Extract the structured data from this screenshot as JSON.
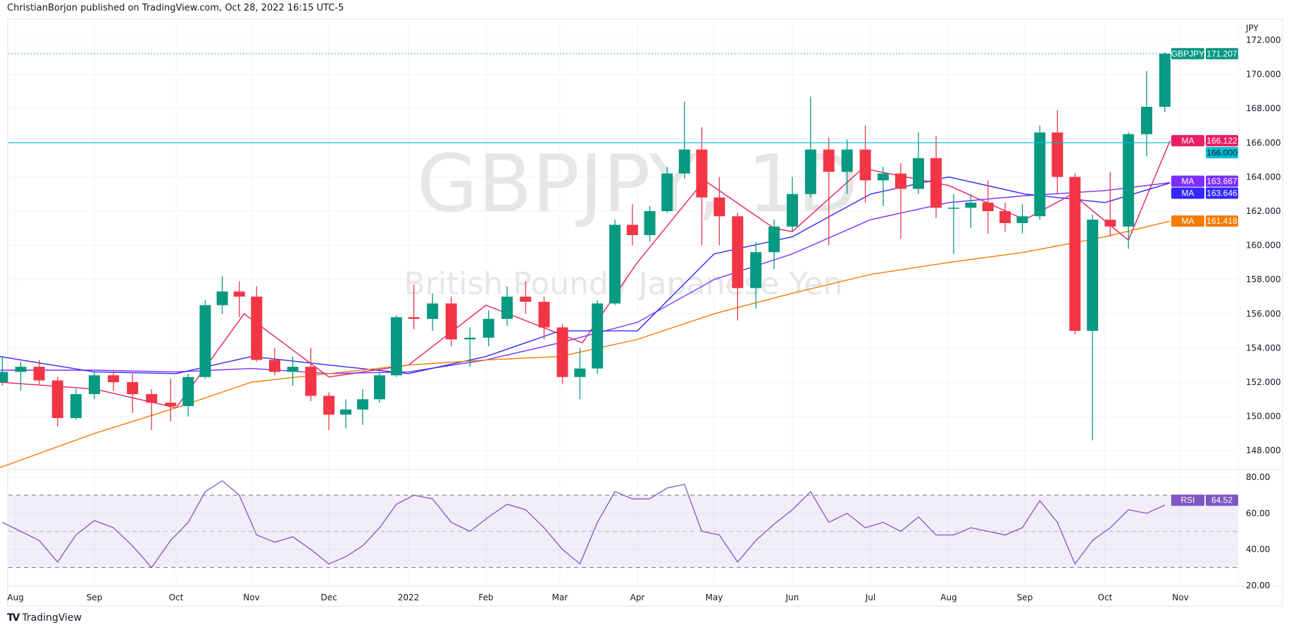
{
  "header": {
    "text": "ChristianBorjon published on TradingView.com, Oct 28, 2022 16:15 UTC-5"
  },
  "footer": {
    "logo_text": "TradingView"
  },
  "watermark": {
    "symbol": "GBPJPY, 1D",
    "description": "British Pound / Japanese Yen"
  },
  "colors": {
    "up": "#089981",
    "down": "#f23645",
    "ma20": "#e91e63",
    "ma100": "#7b2fff",
    "ma50": "#3326ff",
    "ma200": "#f57c00",
    "hline": "#00bcd4",
    "rsi": "#7e57c2"
  },
  "chart_data": [
    {
      "type": "candlestick",
      "symbol": "GBPJPY",
      "interval": "1D",
      "currency_label": "JPY",
      "ylim": [
        147,
        172.6
      ],
      "y_ticks": [
        "172.000",
        "170.000",
        "168.000",
        "166.000",
        "164.000",
        "162.000",
        "160.000",
        "158.000",
        "156.000",
        "154.000",
        "152.000",
        "150.000",
        "148.000"
      ],
      "x_ticks": [
        {
          "label": "Aug",
          "date": "2021-08-02"
        },
        {
          "label": "Sep",
          "date": "2021-09-01"
        },
        {
          "label": "Oct",
          "date": "2021-10-01"
        },
        {
          "label": "Nov",
          "date": "2021-11-01"
        },
        {
          "label": "Dec",
          "date": "2021-12-01"
        },
        {
          "label": "2022",
          "date": "2022-01-03"
        },
        {
          "label": "Feb",
          "date": "2022-02-01"
        },
        {
          "label": "Mar",
          "date": "2022-03-01"
        },
        {
          "label": "Apr",
          "date": "2022-04-01"
        },
        {
          "label": "May",
          "date": "2022-05-02"
        },
        {
          "label": "Jun",
          "date": "2022-06-01"
        },
        {
          "label": "Jul",
          "date": "2022-07-01"
        },
        {
          "label": "Aug",
          "date": "2022-08-01"
        },
        {
          "label": "Sep",
          "date": "2022-09-01"
        },
        {
          "label": "Oct",
          "date": "2022-10-03"
        },
        {
          "label": "Nov",
          "date": "2022-11-01"
        }
      ],
      "grid": true,
      "last_price": {
        "label": "GBPJPY",
        "value": "171.207"
      },
      "horizontal_line": {
        "value": 166.0,
        "label": "166.000"
      },
      "candles_columns": [
        "date",
        "open",
        "high",
        "low",
        "close"
      ],
      "candles": [
        [
          "2021-07-30",
          152.0,
          153.5,
          151.8,
          152.6
        ],
        [
          "2021-08-06",
          152.6,
          153.2,
          151.5,
          152.9
        ],
        [
          "2021-08-13",
          152.9,
          153.3,
          151.8,
          152.1
        ],
        [
          "2021-08-20",
          152.1,
          152.3,
          149.4,
          149.9
        ],
        [
          "2021-08-27",
          149.9,
          151.6,
          149.8,
          151.3
        ],
        [
          "2021-09-03",
          151.3,
          152.6,
          151.0,
          152.4
        ],
        [
          "2021-09-10",
          152.4,
          152.7,
          151.5,
          152.0
        ],
        [
          "2021-09-17",
          152.0,
          152.5,
          150.2,
          151.3
        ],
        [
          "2021-09-24",
          151.3,
          151.6,
          149.2,
          150.8
        ],
        [
          "2021-10-01",
          150.8,
          152.2,
          149.7,
          150.6
        ],
        [
          "2021-10-08",
          150.6,
          152.5,
          150.0,
          152.3
        ],
        [
          "2021-10-15",
          152.3,
          156.8,
          152.2,
          156.5
        ],
        [
          "2021-10-22",
          156.5,
          158.2,
          156.0,
          157.3
        ],
        [
          "2021-10-29",
          157.3,
          157.9,
          155.8,
          157.0
        ],
        [
          "2021-11-05",
          157.0,
          157.6,
          153.2,
          153.3
        ],
        [
          "2021-11-12",
          153.3,
          154.0,
          152.4,
          152.6
        ],
        [
          "2021-11-19",
          152.6,
          153.5,
          151.8,
          152.9
        ],
        [
          "2021-11-26",
          152.9,
          154.0,
          150.9,
          151.2
        ],
        [
          "2021-12-03",
          151.2,
          151.4,
          149.2,
          150.1
        ],
        [
          "2021-12-10",
          150.1,
          151.0,
          149.3,
          150.4
        ],
        [
          "2021-12-17",
          150.4,
          151.6,
          149.5,
          151.0
        ],
        [
          "2021-12-24",
          151.0,
          152.6,
          150.8,
          152.4
        ],
        [
          "2021-12-31",
          152.4,
          155.9,
          152.3,
          155.8
        ],
        [
          "2022-01-07",
          155.8,
          157.7,
          155.1,
          155.7
        ],
        [
          "2022-01-14",
          155.7,
          157.2,
          155.0,
          156.6
        ],
        [
          "2022-01-21",
          156.6,
          157.0,
          154.1,
          154.5
        ],
        [
          "2022-01-28",
          154.5,
          155.2,
          152.9,
          154.6
        ],
        [
          "2022-02-04",
          154.6,
          156.2,
          154.1,
          155.7
        ],
        [
          "2022-02-11",
          155.7,
          157.6,
          155.3,
          157.0
        ],
        [
          "2022-02-18",
          157.0,
          157.9,
          156.0,
          156.7
        ],
        [
          "2022-02-25",
          156.7,
          157.0,
          154.5,
          155.2
        ],
        [
          "2022-03-04",
          155.2,
          155.4,
          151.9,
          152.3
        ],
        [
          "2022-03-11",
          152.3,
          154.0,
          151.0,
          152.8
        ],
        [
          "2022-03-18",
          152.8,
          156.8,
          152.5,
          156.6
        ],
        [
          "2022-03-25",
          156.6,
          161.5,
          156.5,
          161.2
        ],
        [
          "2022-04-01",
          161.2,
          162.4,
          160.0,
          160.6
        ],
        [
          "2022-04-08",
          160.6,
          162.3,
          160.2,
          162.0
        ],
        [
          "2022-04-15",
          162.0,
          164.6,
          161.9,
          164.2
        ],
        [
          "2022-04-22",
          164.2,
          168.4,
          163.9,
          165.6
        ],
        [
          "2022-04-29",
          165.6,
          166.9,
          160.0,
          162.8
        ],
        [
          "2022-05-06",
          162.8,
          164.0,
          160.0,
          161.7
        ],
        [
          "2022-05-13",
          161.7,
          161.9,
          155.6,
          157.5
        ],
        [
          "2022-05-20",
          157.5,
          160.2,
          156.3,
          159.6
        ],
        [
          "2022-05-27",
          159.6,
          161.5,
          158.6,
          161.1
        ],
        [
          "2022-06-03",
          161.1,
          164.0,
          160.8,
          163.0
        ],
        [
          "2022-06-10",
          163.0,
          168.7,
          162.8,
          165.6
        ],
        [
          "2022-06-17",
          165.6,
          166.3,
          160.0,
          164.3
        ],
        [
          "2022-06-24",
          164.3,
          166.2,
          163.0,
          165.6
        ],
        [
          "2022-07-01",
          165.6,
          167.0,
          162.5,
          163.8
        ],
        [
          "2022-07-08",
          163.8,
          164.6,
          162.3,
          164.2
        ],
        [
          "2022-07-15",
          164.2,
          164.8,
          160.4,
          163.3
        ],
        [
          "2022-07-22",
          163.3,
          166.6,
          163.0,
          165.1
        ],
        [
          "2022-07-29",
          165.1,
          166.4,
          161.6,
          162.2
        ],
        [
          "2022-08-05",
          162.2,
          163.0,
          159.5,
          162.2
        ],
        [
          "2022-08-12",
          162.2,
          163.0,
          161.0,
          162.5
        ],
        [
          "2022-08-19",
          162.5,
          163.8,
          160.7,
          162.0
        ],
        [
          "2022-08-26",
          162.0,
          162.5,
          160.8,
          161.3
        ],
        [
          "2022-09-02",
          161.3,
          162.4,
          160.7,
          161.7
        ],
        [
          "2022-09-09",
          161.7,
          167.0,
          161.5,
          166.6
        ],
        [
          "2022-09-16",
          166.6,
          167.9,
          163.0,
          164.0
        ],
        [
          "2022-09-23",
          164.0,
          164.2,
          154.8,
          155.0
        ],
        [
          "2022-09-30",
          155.0,
          161.8,
          148.6,
          161.5
        ],
        [
          "2022-10-07",
          161.5,
          164.3,
          160.5,
          161.1
        ],
        [
          "2022-10-14",
          161.1,
          166.6,
          159.8,
          166.5
        ],
        [
          "2022-10-21",
          166.5,
          170.2,
          165.2,
          168.1
        ],
        [
          "2022-10-28",
          168.1,
          171.3,
          167.8,
          171.207
        ]
      ],
      "moving_averages": [
        {
          "name": "MA",
          "value": "166.122",
          "color_key": "ma20",
          "points": [
            [
              "2021-07-27",
              152.0
            ],
            [
              "2021-09-01",
              151.6
            ],
            [
              "2021-10-01",
              150.5
            ],
            [
              "2021-10-29",
              156.0
            ],
            [
              "2021-12-01",
              152.3
            ],
            [
              "2022-01-03",
              153.0
            ],
            [
              "2022-02-01",
              156.5
            ],
            [
              "2022-03-10",
              154.3
            ],
            [
              "2022-04-01",
              159.0
            ],
            [
              "2022-04-28",
              163.8
            ],
            [
              "2022-05-25",
              161.0
            ],
            [
              "2022-06-01",
              160.8
            ],
            [
              "2022-06-28",
              164.5
            ],
            [
              "2022-08-01",
              163.5
            ],
            [
              "2022-09-01",
              161.5
            ],
            [
              "2022-09-20",
              163.0
            ],
            [
              "2022-10-12",
              160.3
            ],
            [
              "2022-10-28",
              166.122
            ]
          ]
        },
        {
          "name": "MA",
          "value": "163.667",
          "color_key": "ma100",
          "points": [
            [
              "2021-07-27",
              152.7
            ],
            [
              "2021-09-01",
              152.7
            ],
            [
              "2021-10-01",
              152.6
            ],
            [
              "2021-11-01",
              152.8
            ],
            [
              "2021-12-01",
              152.5
            ],
            [
              "2022-01-03",
              152.6
            ],
            [
              "2022-02-01",
              153.3
            ],
            [
              "2022-03-01",
              154.3
            ],
            [
              "2022-04-01",
              155.5
            ],
            [
              "2022-05-02",
              158.0
            ],
            [
              "2022-06-01",
              159.5
            ],
            [
              "2022-07-01",
              161.5
            ],
            [
              "2022-08-01",
              162.5
            ],
            [
              "2022-09-01",
              162.9
            ],
            [
              "2022-10-03",
              163.2
            ],
            [
              "2022-10-28",
              163.667
            ]
          ]
        },
        {
          "name": "MA",
          "value": "163.646",
          "color_key": "ma50",
          "points": [
            [
              "2021-07-27",
              153.5
            ],
            [
              "2021-09-01",
              152.6
            ],
            [
              "2021-10-01",
              152.5
            ],
            [
              "2021-11-01",
              153.5
            ],
            [
              "2021-12-01",
              153.0
            ],
            [
              "2022-01-03",
              152.5
            ],
            [
              "2022-02-01",
              153.5
            ],
            [
              "2022-03-01",
              155.0
            ],
            [
              "2022-04-01",
              155.0
            ],
            [
              "2022-05-02",
              159.5
            ],
            [
              "2022-06-01",
              160.5
            ],
            [
              "2022-07-01",
              163.0
            ],
            [
              "2022-08-01",
              164.0
            ],
            [
              "2022-09-01",
              163.0
            ],
            [
              "2022-10-03",
              162.5
            ],
            [
              "2022-10-28",
              163.646
            ]
          ]
        },
        {
          "name": "MA",
          "value": "161.418",
          "color_key": "ma200",
          "points": [
            [
              "2021-07-27",
              147.0
            ],
            [
              "2021-09-01",
              149.0
            ],
            [
              "2021-10-01",
              150.5
            ],
            [
              "2021-11-01",
              152.0
            ],
            [
              "2021-12-01",
              152.5
            ],
            [
              "2022-01-03",
              153.0
            ],
            [
              "2022-02-01",
              153.3
            ],
            [
              "2022-03-01",
              153.5
            ],
            [
              "2022-04-01",
              154.5
            ],
            [
              "2022-05-02",
              156.0
            ],
            [
              "2022-06-01",
              157.2
            ],
            [
              "2022-07-01",
              158.3
            ],
            [
              "2022-08-01",
              159.0
            ],
            [
              "2022-09-01",
              159.6
            ],
            [
              "2022-10-03",
              160.5
            ],
            [
              "2022-10-28",
              161.418
            ]
          ]
        }
      ]
    },
    {
      "type": "line",
      "indicator": "RSI",
      "label": "RSI",
      "last_value": "64.52",
      "ylim": [
        16,
        84
      ],
      "y_ticks": [
        "80.00",
        "60.00",
        "40.00",
        "20.00"
      ],
      "bands": {
        "upper": 70,
        "middle": 50,
        "lower": 30
      },
      "dates_from": "candles",
      "values": [
        55,
        50,
        45,
        33,
        48,
        56,
        52,
        42,
        30,
        45,
        55,
        72,
        78,
        70,
        48,
        44,
        47,
        40,
        32,
        36,
        42,
        52,
        65,
        70,
        68,
        55,
        50,
        58,
        65,
        62,
        52,
        40,
        32,
        55,
        72,
        68,
        68,
        74,
        76,
        50,
        48,
        33,
        45,
        54,
        62,
        72,
        55,
        60,
        52,
        55,
        50,
        58,
        48,
        48,
        52,
        50,
        48,
        52,
        67,
        55,
        32,
        45,
        52,
        62,
        60,
        64.52
      ]
    }
  ]
}
